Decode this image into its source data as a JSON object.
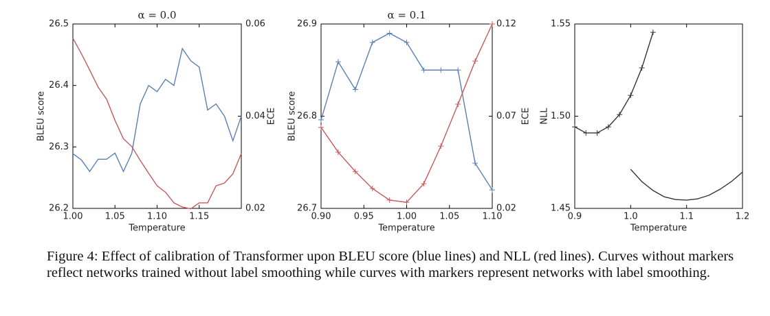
{
  "chart_data": [
    {
      "type": "line",
      "title": "α = 0.0",
      "xlabel": "Temperature",
      "ylabel": "BLEU score",
      "y2label": "ECE",
      "x": [
        1.0,
        1.01,
        1.02,
        1.03,
        1.04,
        1.05,
        1.06,
        1.07,
        1.08,
        1.09,
        1.1,
        1.11,
        1.12,
        1.13,
        1.14,
        1.15,
        1.16,
        1.17,
        1.18,
        1.19,
        1.2
      ],
      "xlim": [
        1.0,
        1.2
      ],
      "xticks": [
        {
          "value": 1.0,
          "label": "1.00"
        },
        {
          "value": 1.05,
          "label": "1.05"
        },
        {
          "value": 1.1,
          "label": "1.10"
        },
        {
          "value": 1.15,
          "label": "1.15"
        }
      ],
      "ylim": [
        26.2,
        26.5
      ],
      "yticks": [
        26.2,
        26.3,
        26.4,
        26.5
      ],
      "y2lim": [
        0.02,
        0.06
      ],
      "y2ticks": [
        0.02,
        0.04,
        0.06
      ],
      "series": [
        {
          "color": "#5a7fb5",
          "values": [
            26.289,
            26.279,
            26.26,
            26.28,
            26.28,
            26.29,
            26.26,
            26.29,
            26.37,
            26.4,
            26.39,
            26.41,
            26.4,
            26.46,
            26.44,
            26.43,
            26.36,
            26.37,
            26.35,
            26.31,
            26.35
          ]
        },
        {
          "color": "#c8585a",
          "axis": "y2",
          "values": [
            0.0569,
            0.0536,
            0.05,
            0.0463,
            0.0437,
            0.0391,
            0.0351,
            0.0334,
            0.0304,
            0.0276,
            0.0249,
            0.0235,
            0.0212,
            0.0203,
            0.0199,
            0.0212,
            0.0212,
            0.0249,
            0.0255,
            0.0275,
            0.0319
          ]
        }
      ]
    },
    {
      "type": "line",
      "title": "α = 0.1",
      "xlabel": "Temperature",
      "ylabel": "BLEU score",
      "y2label": "ECE",
      "x": [
        0.9,
        0.92,
        0.94,
        0.96,
        0.98,
        1.0,
        1.02,
        1.04,
        1.06,
        1.08,
        1.1
      ],
      "xlim": [
        0.9,
        1.1
      ],
      "xticks": [
        {
          "value": 0.9,
          "label": "0.90"
        },
        0.95,
        {
          "value": 1.0,
          "label": "1.00"
        },
        1.05,
        {
          "value": 1.1,
          "label": "1.10"
        }
      ],
      "ylim": [
        26.7,
        26.9
      ],
      "yticks": [
        26.7,
        26.8,
        26.9
      ],
      "y2lim": [
        0.02,
        0.12
      ],
      "y2ticks": [
        0.02,
        0.07,
        0.12
      ],
      "series": [
        {
          "color": "#5a7fb5",
          "marker": "+",
          "values": [
            26.796,
            26.859,
            26.829,
            26.88,
            26.89,
            26.88,
            26.85,
            26.85,
            26.85,
            26.749,
            26.72
          ]
        },
        {
          "color": "#c8585a",
          "marker": "+",
          "axis": "y2",
          "values": [
            0.0639,
            0.0505,
            0.04,
            0.0308,
            0.0245,
            0.0233,
            0.0334,
            0.0538,
            0.0765,
            0.0999,
            0.12
          ]
        }
      ]
    },
    {
      "type": "line",
      "xlabel": "Temperature",
      "ylabel": "NLL",
      "xlim": [
        0.9,
        1.2
      ],
      "xticks": [
        0.9,
        {
          "value": 1.0,
          "label": "1.0"
        },
        1.1,
        1.2
      ],
      "ylim": [
        1.45,
        1.55
      ],
      "yticks": [
        1.45,
        {
          "value": 1.5,
          "label": "1.50"
        },
        1.55
      ],
      "series": [
        {
          "color": "#333333",
          "marker": "+",
          "x": [
            0.9,
            0.92,
            0.94,
            0.96,
            0.98,
            1.0,
            1.02,
            1.04
          ],
          "values": [
            1.4942,
            1.4909,
            1.4909,
            1.4942,
            1.5009,
            1.5113,
            1.5262,
            1.5455
          ]
        },
        {
          "color": "#333333",
          "x": [
            1.0,
            1.02,
            1.04,
            1.06,
            1.08,
            1.1,
            1.12,
            1.14,
            1.16,
            1.18,
            1.2
          ],
          "values": [
            1.4712,
            1.4645,
            1.4597,
            1.4563,
            1.4548,
            1.4545,
            1.4552,
            1.4571,
            1.4604,
            1.4645,
            1.4697
          ]
        }
      ]
    }
  ],
  "caption": "Figure 4: Effect of calibration of Transformer upon BLEU score (blue lines) and NLL (red lines). Curves without markers reflect networks trained without label smoothing while curves with markers represent networks with label smoothing."
}
